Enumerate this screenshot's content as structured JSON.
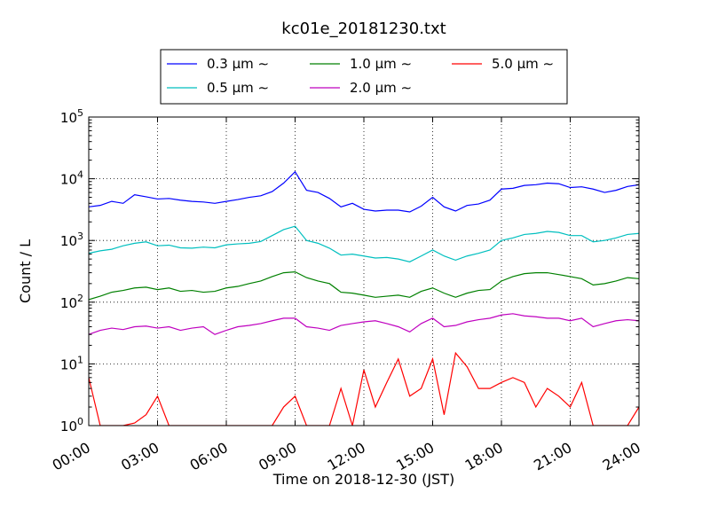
{
  "chart_data": {
    "type": "line",
    "title": "kc01e_20181230.txt",
    "xlabel": "Time on 2018-12-30 (JST)",
    "ylabel": "Count / L",
    "yscale": "log",
    "ylim": [
      1,
      100000
    ],
    "xlim_hours": [
      0,
      24
    ],
    "grid": true,
    "legend_position": "top-center, outside plot",
    "x_tick_labels": [
      "00:00",
      "03:00",
      "06:00",
      "09:00",
      "12:00",
      "15:00",
      "18:00",
      "21:00",
      "24:00"
    ],
    "y_ticks": [
      {
        "value": 1,
        "base": "10",
        "exp": "0"
      },
      {
        "value": 10,
        "base": "10",
        "exp": "1"
      },
      {
        "value": 100,
        "base": "10",
        "exp": "2"
      },
      {
        "value": 1000,
        "base": "10",
        "exp": "3"
      },
      {
        "value": 10000,
        "base": "10",
        "exp": "4"
      },
      {
        "value": 100000,
        "base": "10",
        "exp": "5"
      }
    ],
    "x_hours": [
      0,
      0.5,
      1,
      1.5,
      2,
      2.5,
      3,
      3.5,
      4,
      4.5,
      5,
      5.5,
      6,
      6.5,
      7,
      7.5,
      8,
      8.5,
      9,
      9.5,
      10,
      10.5,
      11,
      11.5,
      12,
      12.5,
      13,
      13.5,
      14,
      14.5,
      15,
      15.5,
      16,
      16.5,
      17,
      17.5,
      18,
      18.5,
      19,
      19.5,
      20,
      20.5,
      21,
      21.5,
      22,
      22.5,
      23,
      23.5,
      24
    ],
    "series": [
      {
        "name": "0.3 μm ∼",
        "color": "#0000ff",
        "values": [
          3500,
          3700,
          4300,
          4000,
          5500,
          5100,
          4700,
          4800,
          4500,
          4300,
          4200,
          4000,
          4300,
          4600,
          5000,
          5300,
          6200,
          8500,
          13000,
          6500,
          6000,
          4800,
          3500,
          4000,
          3200,
          3000,
          3100,
          3100,
          2900,
          3600,
          5000,
          3500,
          3000,
          3700,
          3900,
          4500,
          6800,
          7000,
          7800,
          8000,
          8500,
          8300,
          7200,
          7400,
          6800,
          6000,
          6500,
          7500,
          8000
        ]
      },
      {
        "name": "0.5 μm ∼",
        "color": "#00bfbf",
        "values": [
          620,
          680,
          720,
          820,
          900,
          950,
          820,
          840,
          760,
          750,
          780,
          760,
          850,
          880,
          900,
          960,
          1200,
          1500,
          1700,
          1000,
          900,
          750,
          580,
          600,
          560,
          520,
          530,
          500,
          450,
          560,
          700,
          560,
          480,
          560,
          620,
          700,
          1000,
          1100,
          1250,
          1300,
          1400,
          1350,
          1200,
          1200,
          950,
          1000,
          1100,
          1250,
          1300
        ]
      },
      {
        "name": "1.0 μm ∼",
        "color": "#008000",
        "values": [
          110,
          125,
          145,
          155,
          170,
          175,
          160,
          170,
          150,
          155,
          145,
          150,
          170,
          180,
          200,
          220,
          260,
          300,
          310,
          250,
          220,
          200,
          145,
          140,
          130,
          120,
          125,
          130,
          120,
          150,
          170,
          140,
          120,
          140,
          155,
          160,
          220,
          260,
          290,
          300,
          300,
          280,
          260,
          240,
          190,
          200,
          220,
          250,
          240
        ]
      },
      {
        "name": "2.0 μm ∼",
        "color": "#bf00bf",
        "values": [
          30,
          35,
          38,
          36,
          40,
          41,
          38,
          40,
          35,
          38,
          40,
          30,
          35,
          40,
          42,
          45,
          50,
          55,
          55,
          40,
          38,
          35,
          42,
          45,
          48,
          50,
          45,
          40,
          33,
          45,
          55,
          40,
          42,
          48,
          52,
          55,
          62,
          65,
          60,
          58,
          55,
          55,
          50,
          55,
          40,
          45,
          50,
          52,
          50
        ]
      },
      {
        "name": "5.0 μm ∼",
        "color": "#ff0000",
        "values": [
          6,
          1,
          1,
          1,
          1.1,
          1.5,
          3,
          1,
          1,
          1,
          1,
          1,
          1,
          1,
          1,
          1,
          1,
          2,
          3,
          1,
          1,
          1,
          4,
          1,
          8,
          2,
          5,
          12,
          3,
          4,
          12,
          1.5,
          15,
          9,
          4,
          4,
          5,
          6,
          5,
          2,
          4,
          3,
          2,
          5,
          1,
          1,
          1,
          1,
          2
        ]
      }
    ]
  }
}
